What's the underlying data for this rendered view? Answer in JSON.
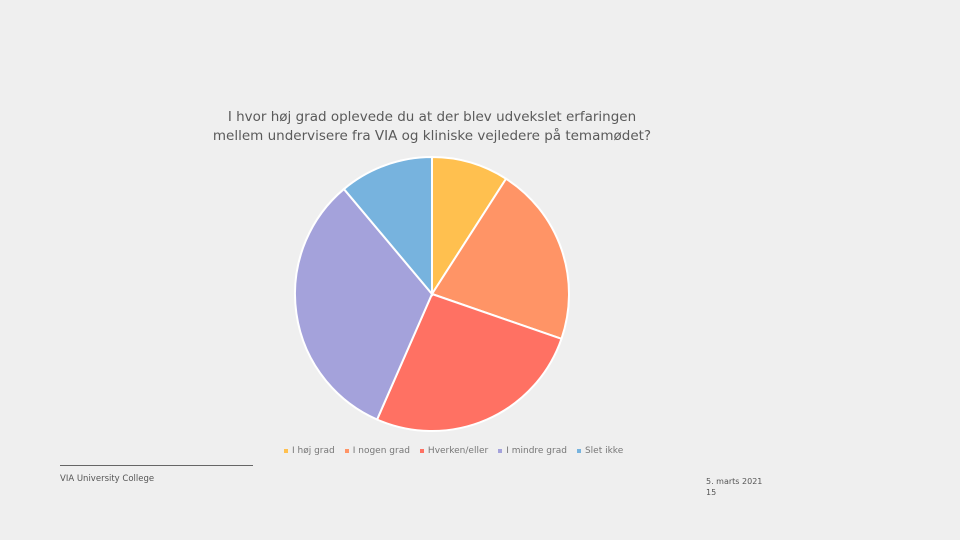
{
  "chart_data": {
    "type": "pie",
    "title_lines": [
      "I hvor høj grad oplevede du at der blev udvekslet erfaringen",
      "mellem undervisere fra VIA og kliniske vejledere på temamødet?"
    ],
    "categories": [
      "I høj grad",
      "I nogen grad",
      "Hverken/eller",
      "I mindre grad",
      "Slet ikke"
    ],
    "values": [
      9,
      21,
      26,
      32,
      11
    ],
    "colors": [
      "#ffc04f",
      "#ff9466",
      "#ff7163",
      "#a4a2db",
      "#77b3de"
    ],
    "legend_position": "bottom"
  },
  "footer": {
    "organization": "VIA University College",
    "date": "5. marts 2021",
    "page_number": "15"
  }
}
